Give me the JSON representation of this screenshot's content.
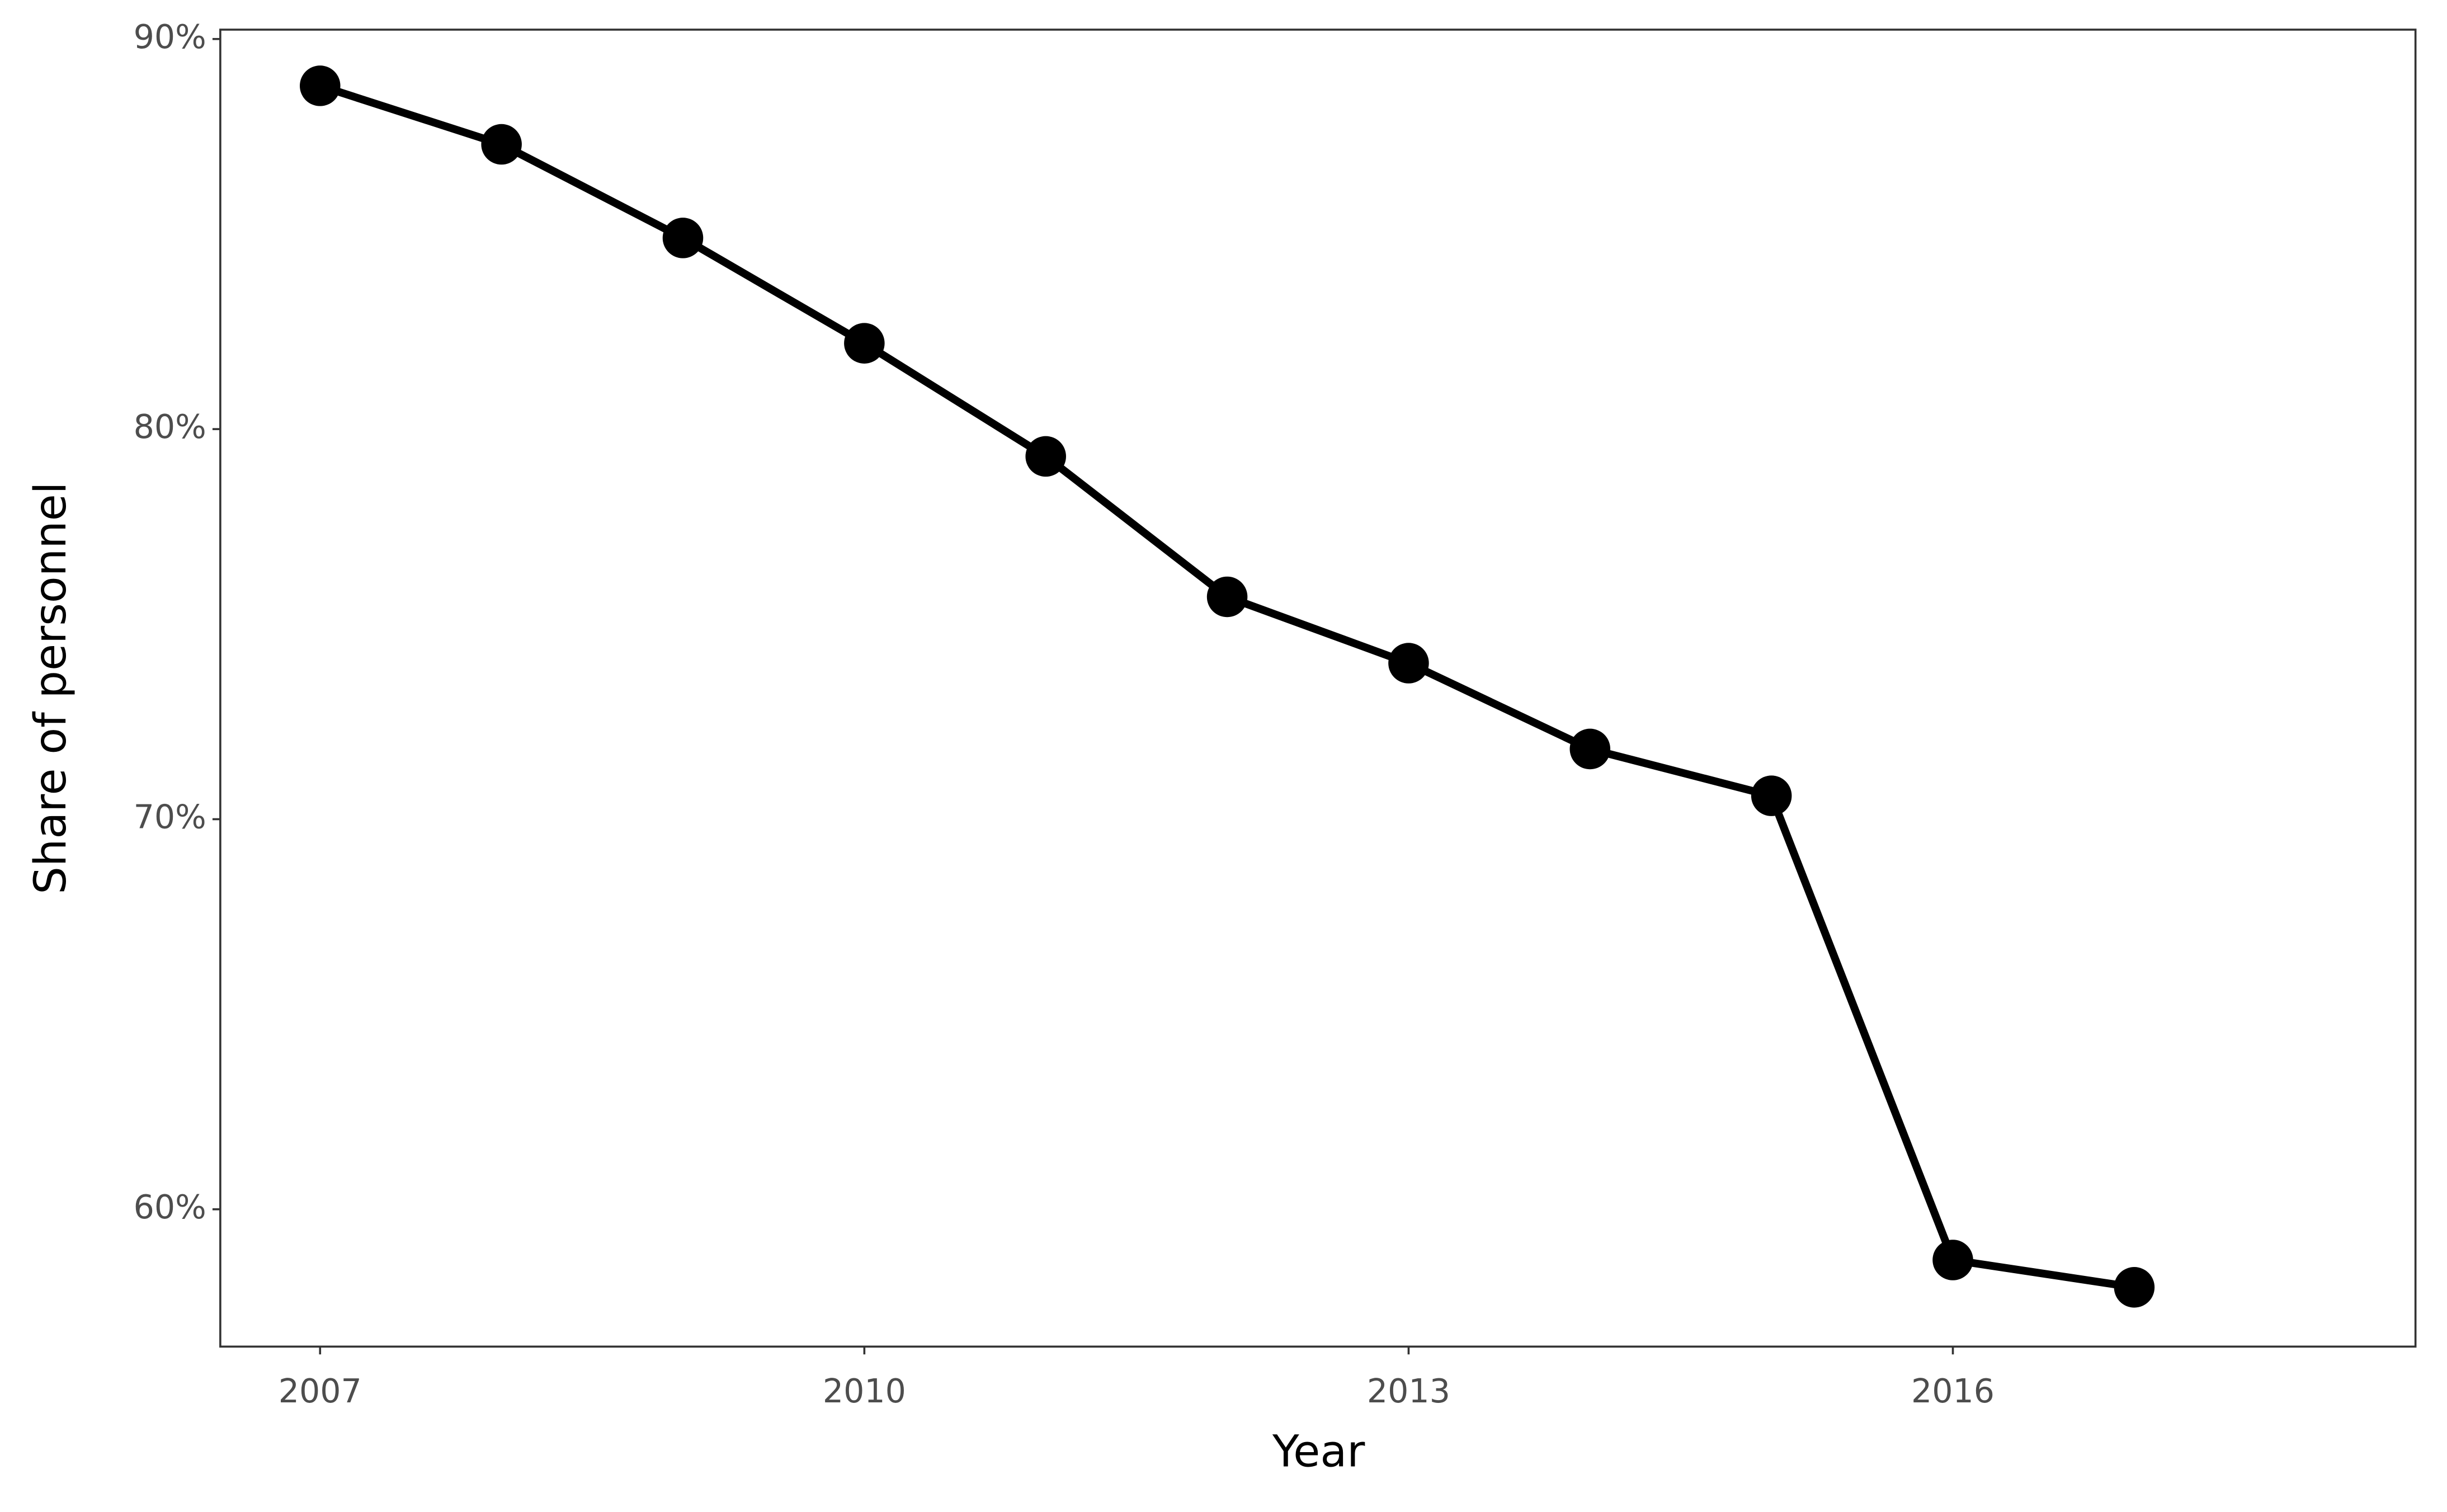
{
  "chart_data": {
    "type": "line",
    "x_label": "Year",
    "y_label": "Share of personnel",
    "x": [
      2007,
      2008,
      2009,
      2010,
      2011,
      2012,
      2013,
      2014,
      2015,
      2016,
      2017
    ],
    "series": [
      {
        "color": "#000000",
        "values": [
          88.8,
          87.3,
          84.9,
          82.2,
          79.3,
          75.7,
          74.0,
          71.8,
          70.6,
          58.7,
          58.0
        ]
      }
    ],
    "xlim": [
      2006.45,
      2018.55
    ],
    "xticks": [
      2007,
      2010,
      2013,
      2016
    ],
    "ylim": [
      56.48,
      90.24
    ],
    "yticks": [
      {
        "value": 60,
        "label": "60%"
      },
      {
        "value": 70,
        "label": "70%"
      },
      {
        "value": 80,
        "label": "80%"
      },
      {
        "value": 90,
        "label": "90%"
      }
    ],
    "grid": false
  }
}
